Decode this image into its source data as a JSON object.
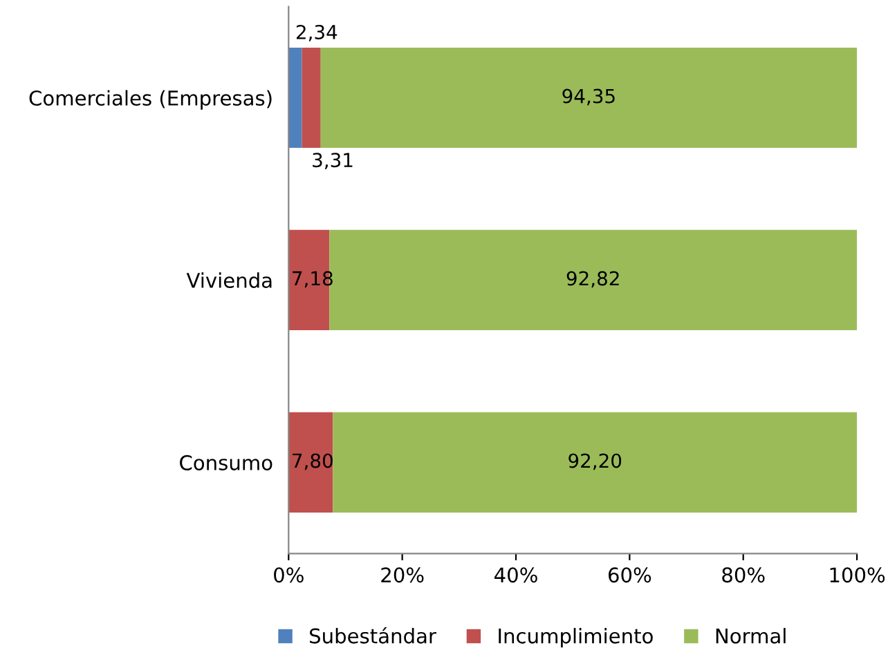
{
  "chart_data": {
    "type": "bar",
    "orientation": "horizontal",
    "stacked": true,
    "categories": [
      "Comerciales (Empresas)",
      "Vivienda",
      "Consumo"
    ],
    "series": [
      {
        "name": "Subestándar",
        "color": "#4f81bd",
        "values": [
          2.34,
          null,
          null
        ],
        "value_labels": [
          "2,34",
          null,
          null
        ]
      },
      {
        "name": "Incumplimiento",
        "color": "#c0504d",
        "values": [
          3.31,
          7.18,
          7.8
        ],
        "value_labels": [
          "3,31",
          "7,18",
          "7,80"
        ]
      },
      {
        "name": "Normal",
        "color": "#9bbb59",
        "values": [
          94.35,
          92.82,
          92.2
        ],
        "value_labels": [
          "94,35",
          "92,82",
          "92,20"
        ]
      }
    ],
    "xlim": [
      0,
      100
    ],
    "xticks": [
      {
        "value": 0,
        "label": "0%"
      },
      {
        "value": 20,
        "label": "20%"
      },
      {
        "value": 40,
        "label": "40%"
      },
      {
        "value": 60,
        "label": "60%"
      },
      {
        "value": 80,
        "label": "80%"
      },
      {
        "value": 100,
        "label": "100%"
      }
    ],
    "legend": "bottom",
    "grid": false
  }
}
